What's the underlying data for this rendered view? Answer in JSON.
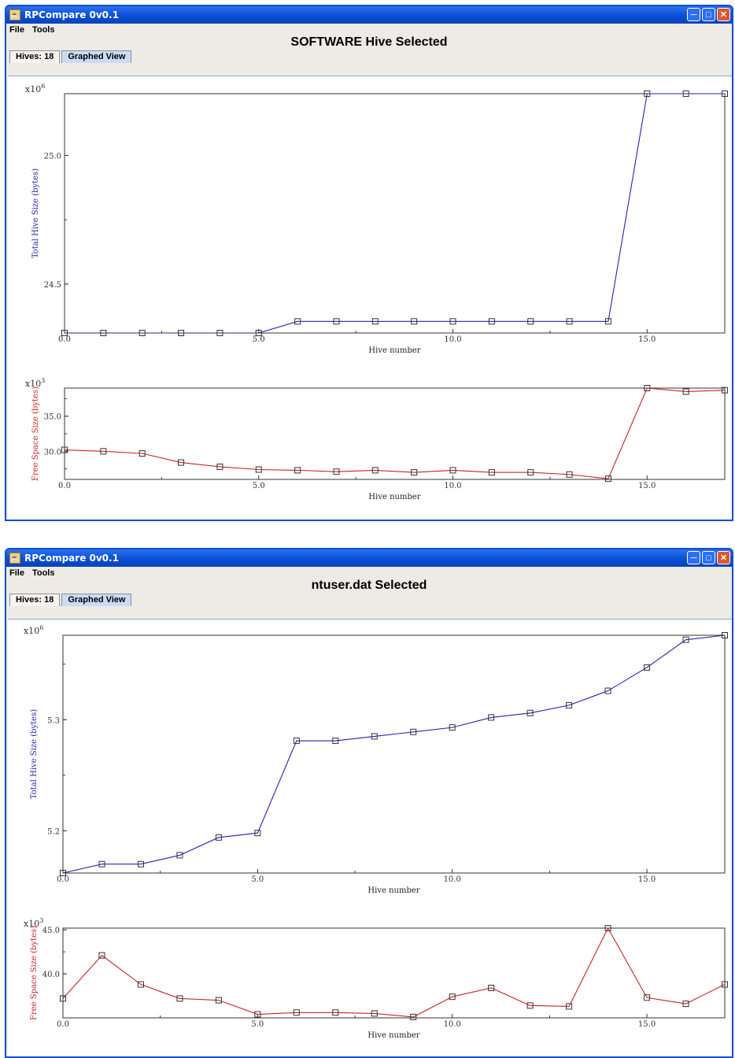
{
  "windows": [
    {
      "title": "RPCompare 0v0.1",
      "menu": [
        "File",
        "Tools"
      ],
      "heading": "SOFTWARE Hive Selected",
      "tabs": [
        "Hives: 18",
        "Graphed View"
      ],
      "active_tab": 1
    },
    {
      "title": "RPCompare 0v0.1",
      "menu": [
        "File",
        "Tools"
      ],
      "heading": "ntuser.dat Selected",
      "tabs": [
        "Hives: 18",
        "Graphed View"
      ],
      "active_tab": 1
    }
  ],
  "colors": {
    "total_series": "#2222bb",
    "free_series": "#cc2222",
    "titlebar": "#0a4fd6"
  },
  "chart_data": [
    {
      "type": "line",
      "xlabel": "Hive number",
      "ylabel": "Total Hive Size (bytes)",
      "multiplier": "x10",
      "exponent": "6",
      "x_ticks": [
        0,
        5,
        10,
        15
      ],
      "y_ticks": [
        24.5,
        25.0
      ],
      "xlim": [
        0,
        17
      ],
      "ylim": [
        24.31,
        25.24
      ],
      "x": [
        0,
        1,
        2,
        3,
        4,
        5,
        6,
        7,
        8,
        9,
        10,
        11,
        12,
        13,
        14,
        15,
        16,
        17
      ],
      "values": [
        24.31,
        24.31,
        24.31,
        24.31,
        24.31,
        24.31,
        24.355,
        24.355,
        24.355,
        24.355,
        24.355,
        24.355,
        24.355,
        24.355,
        24.355,
        25.24,
        25.24,
        25.24
      ],
      "marker": "square",
      "color": "#2222bb"
    },
    {
      "type": "line",
      "xlabel": "Hive number",
      "ylabel": "Free Space Size (bytes)",
      "multiplier": "x10",
      "exponent": "3",
      "x_ticks": [
        0,
        5,
        10,
        15
      ],
      "y_ticks": [
        30.0,
        35.0
      ],
      "xlim": [
        0,
        17
      ],
      "ylim": [
        26.0,
        39.0
      ],
      "x": [
        0,
        1,
        2,
        3,
        4,
        5,
        6,
        7,
        8,
        9,
        10,
        11,
        12,
        13,
        14,
        15,
        16,
        17
      ],
      "values": [
        30.2,
        30.0,
        29.7,
        28.4,
        27.8,
        27.4,
        27.3,
        27.1,
        27.3,
        27.0,
        27.3,
        27.0,
        27.0,
        26.7,
        26.1,
        39.0,
        38.5,
        38.7
      ],
      "marker": "square",
      "color": "#cc2222"
    },
    {
      "type": "line",
      "xlabel": "Hive number",
      "ylabel": "Total Hive Size (bytes)",
      "multiplier": "x10",
      "exponent": "6",
      "x_ticks": [
        0,
        5,
        10,
        15
      ],
      "y_ticks": [
        5.2,
        5.3
      ],
      "xlim": [
        0,
        17
      ],
      "ylim": [
        5.162,
        5.376
      ],
      "x": [
        0,
        1,
        2,
        3,
        4,
        5,
        6,
        7,
        8,
        9,
        10,
        11,
        12,
        13,
        14,
        15,
        16,
        17
      ],
      "values": [
        5.162,
        5.17,
        5.17,
        5.178,
        5.194,
        5.198,
        5.281,
        5.281,
        5.285,
        5.289,
        5.293,
        5.302,
        5.306,
        5.313,
        5.326,
        5.347,
        5.372,
        5.376
      ],
      "marker": "square",
      "color": "#2222bb"
    },
    {
      "type": "line",
      "xlabel": "Hive number",
      "ylabel": "Free Space Size (bytes)",
      "multiplier": "x10",
      "exponent": "3",
      "x_ticks": [
        0,
        5,
        10,
        15
      ],
      "y_ticks": [
        40.0,
        45.0
      ],
      "xlim": [
        0,
        17
      ],
      "ylim": [
        35.0,
        45.2
      ],
      "x": [
        0,
        1,
        2,
        3,
        4,
        5,
        6,
        7,
        8,
        9,
        10,
        11,
        12,
        13,
        14,
        15,
        16,
        17
      ],
      "values": [
        37.2,
        42.1,
        38.8,
        37.2,
        37.0,
        35.4,
        35.6,
        35.6,
        35.5,
        35.1,
        37.4,
        38.4,
        36.4,
        36.3,
        45.2,
        37.3,
        36.6,
        38.8
      ],
      "marker": "square",
      "color": "#cc2222"
    }
  ]
}
